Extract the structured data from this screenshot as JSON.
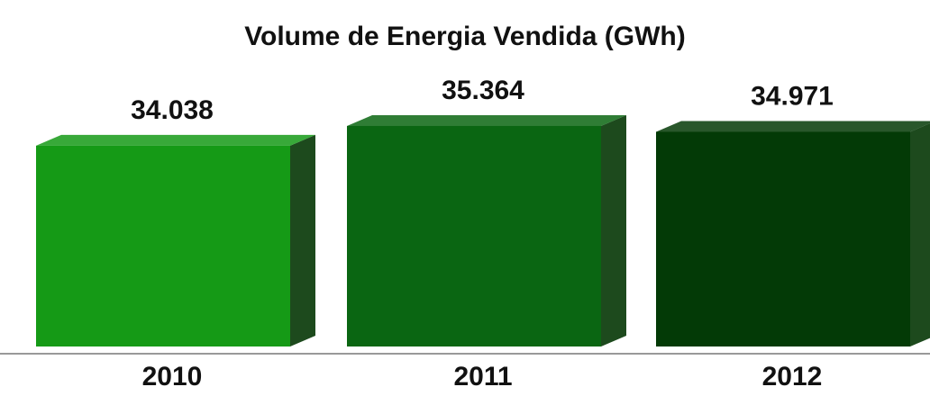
{
  "chart_data": {
    "type": "bar3d",
    "title": "Volume de Energia Vendida (GWh)",
    "categories": [
      "2010",
      "2011",
      "2012"
    ],
    "values": [
      34038,
      35364,
      34971
    ],
    "value_labels": [
      "34.038",
      "35.364",
      "34.971"
    ],
    "colors": [
      "#159a16",
      "#0a6612",
      "#033a06"
    ],
    "ylim": [
      20500,
      36000
    ]
  }
}
